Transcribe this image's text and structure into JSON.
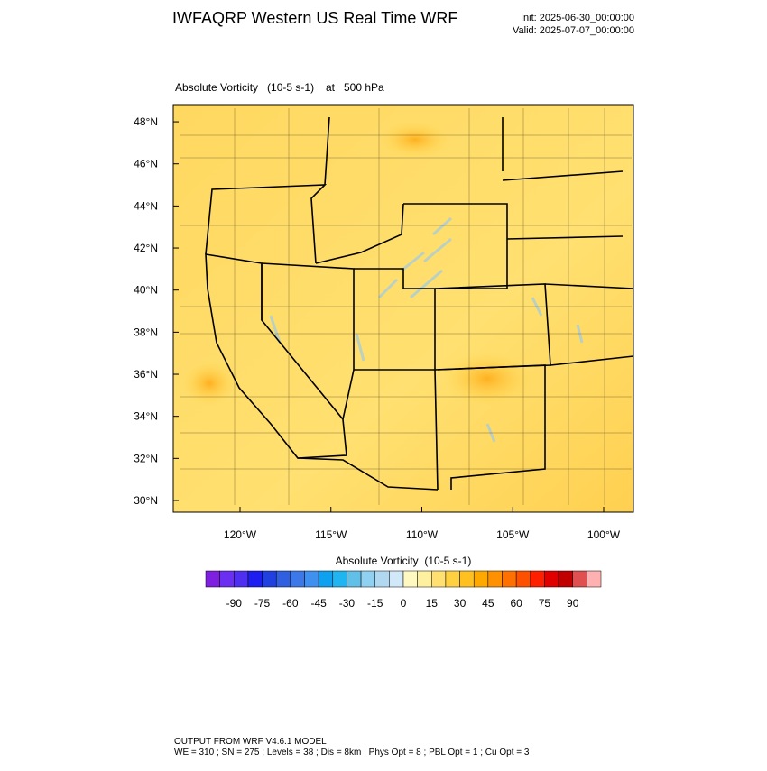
{
  "header": {
    "title": "IWFAQRP Western US Real Time WRF",
    "init": "Init: 2025-06-30_00:00:00",
    "valid": "Valid: 2025-07-07_00:00:00"
  },
  "map": {
    "field": "Absolute Vorticity   (10-5 s-1)",
    "level": "at   500 hPa",
    "lat_ticks": [
      {
        "value": 30,
        "label": "30°N"
      },
      {
        "value": 32,
        "label": "32°N"
      },
      {
        "value": 34,
        "label": "34°N"
      },
      {
        "value": 36,
        "label": "36°N"
      },
      {
        "value": 38,
        "label": "38°N"
      },
      {
        "value": 40,
        "label": "40°N"
      },
      {
        "value": 42,
        "label": "42°N"
      },
      {
        "value": 44,
        "label": "44°N"
      },
      {
        "value": 46,
        "label": "46°N"
      },
      {
        "value": 48,
        "label": "48°N"
      }
    ],
    "lon_ticks": [
      {
        "value": -120,
        "label": "120°W"
      },
      {
        "value": -115,
        "label": "115°W"
      },
      {
        "value": -110,
        "label": "110°W"
      },
      {
        "value": -105,
        "label": "105°W"
      },
      {
        "value": -100,
        "label": "100°W"
      }
    ]
  },
  "colorbar": {
    "title": "Absolute Vorticity  (10-5 s-1)",
    "labels": [
      -90,
      -75,
      -60,
      -45,
      -30,
      -15,
      0,
      15,
      30,
      45,
      60,
      75,
      90
    ],
    "colors": [
      "#7f1fe0",
      "#6a2ff0",
      "#5030f0",
      "#1e1ef0",
      "#2040e0",
      "#3060e0",
      "#3c78e8",
      "#4090f0",
      "#10a0f0",
      "#20b4f0",
      "#60c0e8",
      "#90d0f0",
      "#b0d8f0",
      "#d0e8f8",
      "#fff8c0",
      "#fff0a0",
      "#ffe070",
      "#ffd040",
      "#ffc020",
      "#ffa800",
      "#ff9000",
      "#ff7000",
      "#ff5000",
      "#ff2000",
      "#e00000",
      "#c00000",
      "#e05050",
      "#ffb0b0"
    ]
  },
  "footer": {
    "model": "OUTPUT FROM WRF V4.6.1 MODEL",
    "settings": "WE = 310 ; SN = 275 ; Levels = 38 ; Dis = 8km ; Phys Opt = 8 ; PBL Opt = 1 ; Cu Opt = 3"
  }
}
